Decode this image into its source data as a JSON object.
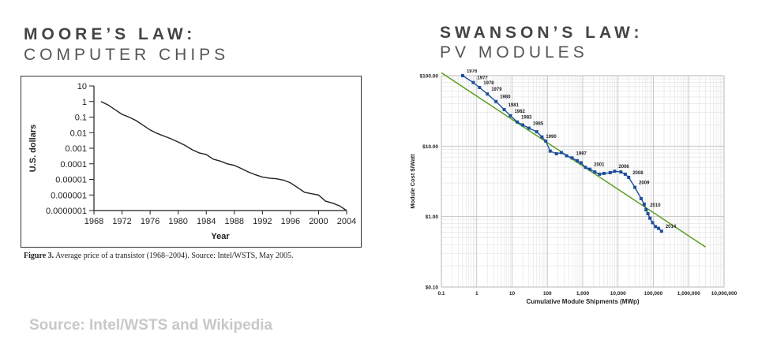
{
  "left": {
    "title": "MOORE’S LAW:",
    "subtitle": "COMPUTER CHIPS",
    "caption_label": "Figure 3.",
    "caption_text": " Average price of a transistor (1968–2004). Source: Intel/WSTS, May 2005."
  },
  "right": {
    "title": "SWANSON’S LAW:",
    "subtitle": "PV MODULES"
  },
  "source": "Source: Intel/WSTS and Wikipedia",
  "chart_data": [
    {
      "type": "line",
      "title": "",
      "xlabel": "Year",
      "ylabel": "U.S. dollars",
      "y_scale": "log",
      "xlim": [
        1968,
        2004
      ],
      "ylim": [
        1e-07,
        10
      ],
      "x_ticks": [
        "1968",
        "1972",
        "1976",
        "1980",
        "1984",
        "1988",
        "1992",
        "1996",
        "2000",
        "2004"
      ],
      "y_ticks": [
        "10",
        "1",
        "0.1",
        "0.01",
        "0.001",
        "0.0001",
        "0.00001",
        "0.000001",
        "0.0000001"
      ],
      "grid": false,
      "series": [
        {
          "name": "",
          "x": [
            1969,
            1970,
            1971,
            1972,
            1973,
            1974,
            1975,
            1976,
            1977,
            1978,
            1979,
            1980,
            1981,
            1982,
            1983,
            1984,
            1985,
            1986,
            1987,
            1988,
            1989,
            1990,
            1991,
            1992,
            1993,
            1994,
            1995,
            1996,
            1997,
            1998,
            1999,
            2000,
            2001,
            2002,
            2003,
            2004
          ],
          "y": [
            1,
            0.6,
            0.3,
            0.15,
            0.1,
            0.06,
            0.03,
            0.015,
            0.009,
            0.006,
            0.004,
            0.0025,
            0.0015,
            0.0008,
            0.0005,
            0.0004,
            0.0002,
            0.00015,
            0.0001,
            8e-05,
            5e-05,
            3e-05,
            2e-05,
            1.4e-05,
            1.2e-05,
            1.1e-05,
            9e-06,
            6e-06,
            3e-06,
            1.5e-06,
            1.2e-06,
            1e-06,
            4e-07,
            3e-07,
            2e-07,
            1e-07
          ]
        }
      ]
    },
    {
      "type": "scatter",
      "title": "",
      "xlabel": "Cumulative Module Shipments (MWp)",
      "ylabel": "Module Cost $/Watt",
      "x_scale": "log",
      "y_scale": "log",
      "xlim": [
        0.1,
        10000000
      ],
      "ylim": [
        0.1,
        100
      ],
      "x_ticks": [
        "0.1",
        "1",
        "10",
        "100",
        "1,000",
        "10,000",
        "100,000",
        "1,000,000",
        "10,000,000"
      ],
      "y_ticks": [
        "$100.00",
        "$10.00",
        "$1.00",
        "$0.10"
      ],
      "grid": true,
      "colors": {
        "data": "#1f4e9c",
        "trend": "#5a9e1f"
      },
      "series": [
        {
          "name": "",
          "x": [
            0.4,
            0.8,
            1.2,
            2,
            3.5,
            6,
            9,
            14,
            20,
            30,
            50,
            70,
            90,
            120,
            180,
            250,
            350,
            500,
            700,
            900,
            1200,
            1600,
            2200,
            3000,
            4000,
            6000,
            8000,
            12000,
            16000,
            20000,
            30000,
            45000,
            55000,
            62000,
            70000,
            80000,
            95000,
            115000,
            140000,
            170000
          ],
          "y": [
            100,
            80,
            68,
            55,
            43,
            33,
            27,
            22,
            20,
            18,
            16,
            13.5,
            11.8,
            8.5,
            7.8,
            8.1,
            7.3,
            6.8,
            6.2,
            5.8,
            5.0,
            4.7,
            4.3,
            4.0,
            4.1,
            4.2,
            4.4,
            4.3,
            4.0,
            3.6,
            2.6,
            1.8,
            1.5,
            1.25,
            1.1,
            0.95,
            0.82,
            0.72,
            0.68,
            0.62
          ]
        },
        {
          "name": "",
          "x": [
            0.1,
            3000000
          ],
          "y": [
            110,
            0.37
          ]
        }
      ],
      "annotations": [
        {
          "text": "1976",
          "x": 0.4,
          "y": 100
        },
        {
          "text": "1977",
          "x": 0.8,
          "y": 80
        },
        {
          "text": "1978",
          "x": 1.2,
          "y": 68
        },
        {
          "text": "1979",
          "x": 2,
          "y": 55
        },
        {
          "text": "1980",
          "x": 3.5,
          "y": 43
        },
        {
          "text": "1981",
          "x": 6,
          "y": 33
        },
        {
          "text": "1982",
          "x": 9,
          "y": 27
        },
        {
          "text": "1983",
          "x": 14,
          "y": 22
        },
        {
          "text": "1985",
          "x": 30,
          "y": 18
        },
        {
          "text": "1990",
          "x": 70,
          "y": 11.8
        },
        {
          "text": "1997",
          "x": 500,
          "y": 6.8
        },
        {
          "text": "2001",
          "x": 1600,
          "y": 4.7
        },
        {
          "text": "2006",
          "x": 8000,
          "y": 4.4
        },
        {
          "text": "2008",
          "x": 20000,
          "y": 3.6
        },
        {
          "text": "2009",
          "x": 30000,
          "y": 2.6
        },
        {
          "text": "2010",
          "x": 62000,
          "y": 1.25
        },
        {
          "text": "2014",
          "x": 170000,
          "y": 0.62
        }
      ]
    }
  ]
}
